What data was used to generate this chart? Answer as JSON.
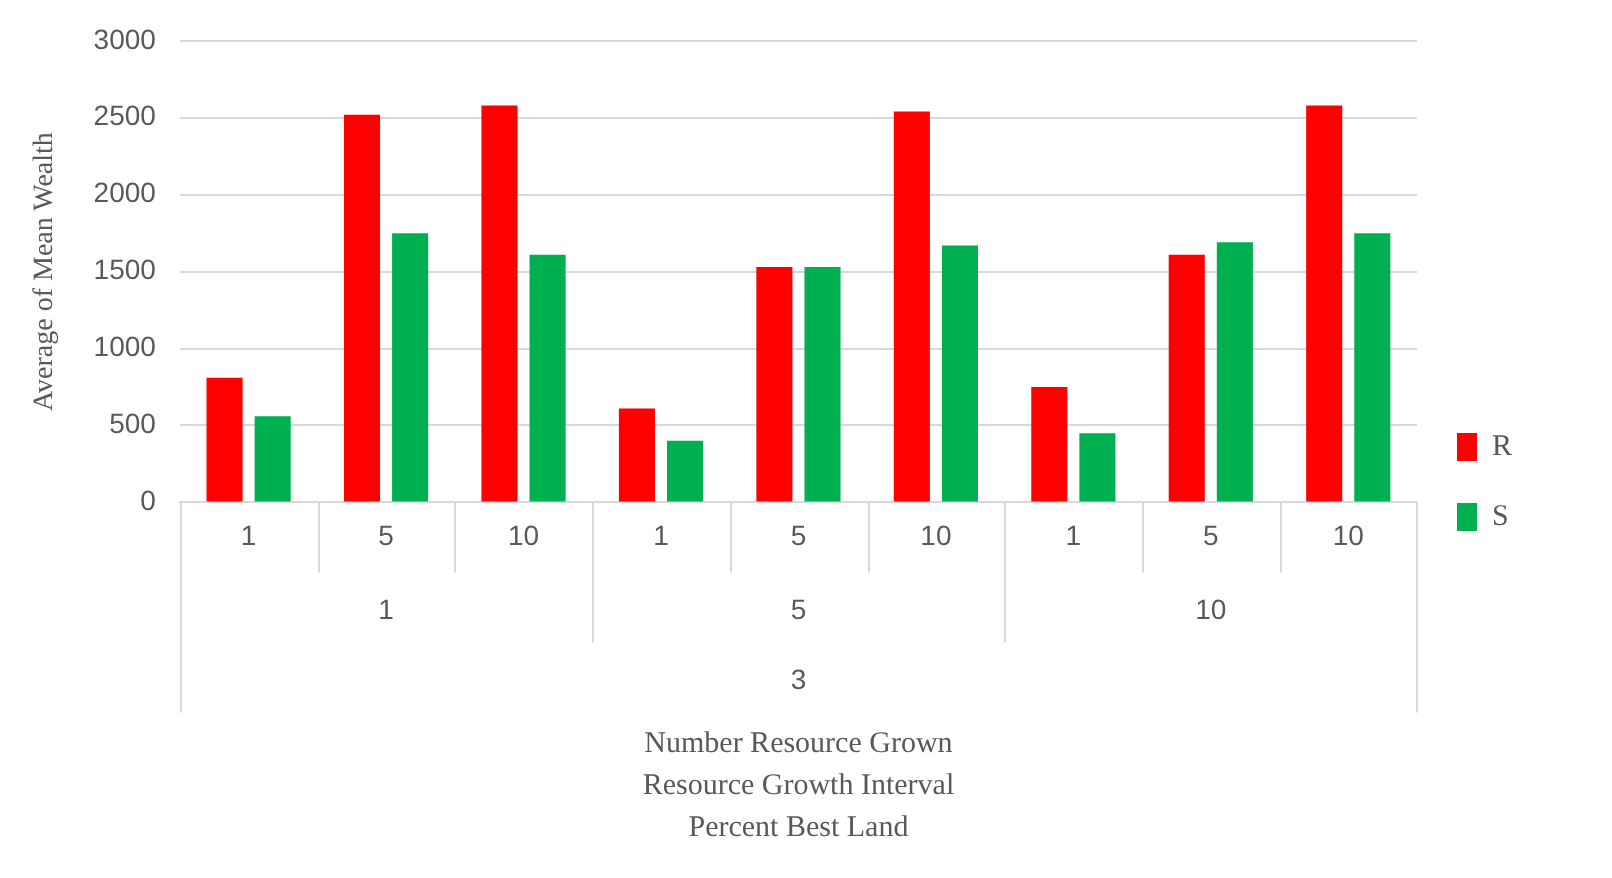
{
  "chart_data": {
    "type": "bar",
    "ylabel": "Average of Mean Wealth",
    "categories": [
      "1",
      "5",
      "10",
      "1",
      "5",
      "10",
      "1",
      "5",
      "10"
    ],
    "annotations": [
      "1",
      "5",
      "10",
      "3",
      "Number Resource Grown",
      "Resource Growth Interval",
      "Percent Best Land"
    ],
    "series": [
      {
        "name": "R",
        "color": "#ff0000",
        "values": [
          810,
          2520,
          2580,
          610,
          1530,
          2540,
          750,
          1610,
          2580
        ]
      },
      {
        "name": "S",
        "color": "#00b050",
        "values": [
          560,
          1750,
          1610,
          400,
          1530,
          1670,
          450,
          1690,
          1750
        ]
      }
    ],
    "ylim": [
      0,
      3000
    ],
    "yticks": [
      0,
      500,
      1000,
      1500,
      2000,
      2500,
      3000
    ],
    "grid": "y",
    "legend": "right"
  }
}
